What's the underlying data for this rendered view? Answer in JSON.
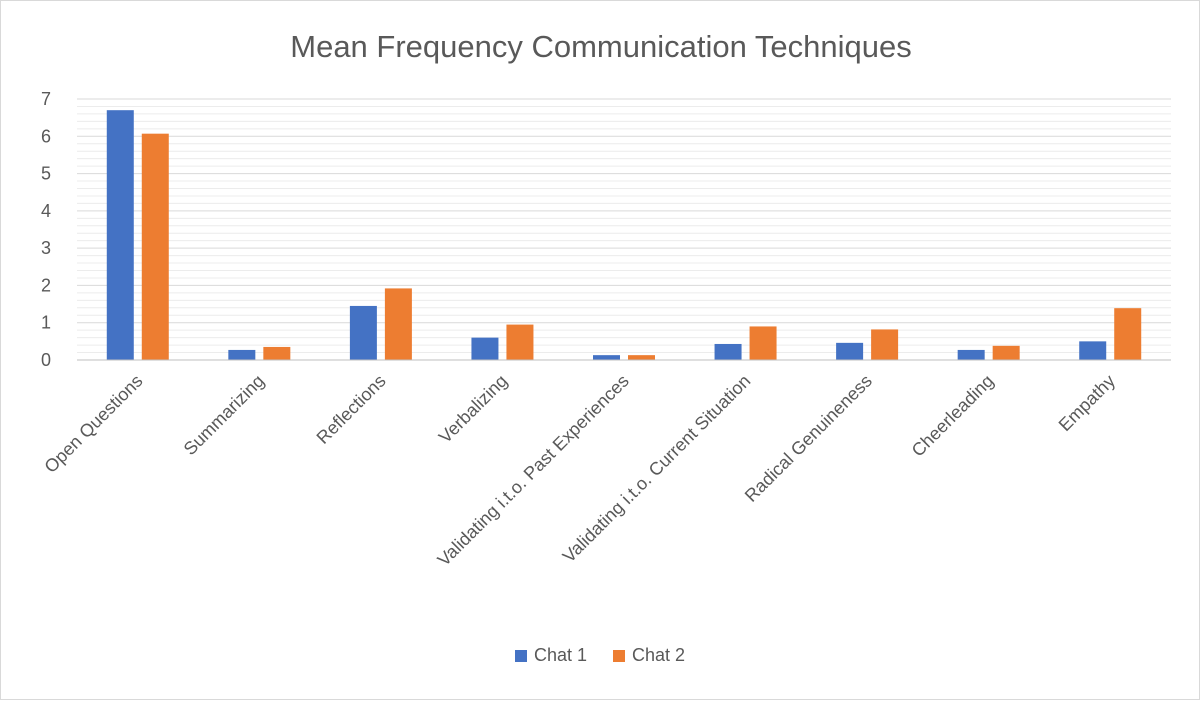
{
  "chart_data": {
    "type": "bar",
    "title": "Mean Frequency Communication Techniques",
    "xlabel": "",
    "ylabel": "",
    "ylim": [
      0,
      7
    ],
    "yticks": [
      0,
      1,
      2,
      3,
      4,
      5,
      6,
      7
    ],
    "minor_grid_step": 0.2,
    "legend_position": "bottom",
    "categories": [
      "Open Questions",
      "Summarizing",
      "Reflections",
      "Verbalizing",
      "Validating i.t.o. Past Experiences",
      "Validating i.t.o. Current Situation",
      "Radical Genuineness",
      "Cheerleading",
      "Empathy"
    ],
    "series": [
      {
        "name": "Chat 1",
        "color": "#4472c4",
        "values": [
          6.7,
          0.27,
          1.45,
          0.6,
          0.13,
          0.43,
          0.46,
          0.27,
          0.5
        ]
      },
      {
        "name": "Chat 2",
        "color": "#ed7d31",
        "values": [
          6.07,
          0.35,
          1.92,
          0.95,
          0.13,
          0.9,
          0.82,
          0.38,
          1.39
        ]
      }
    ]
  }
}
